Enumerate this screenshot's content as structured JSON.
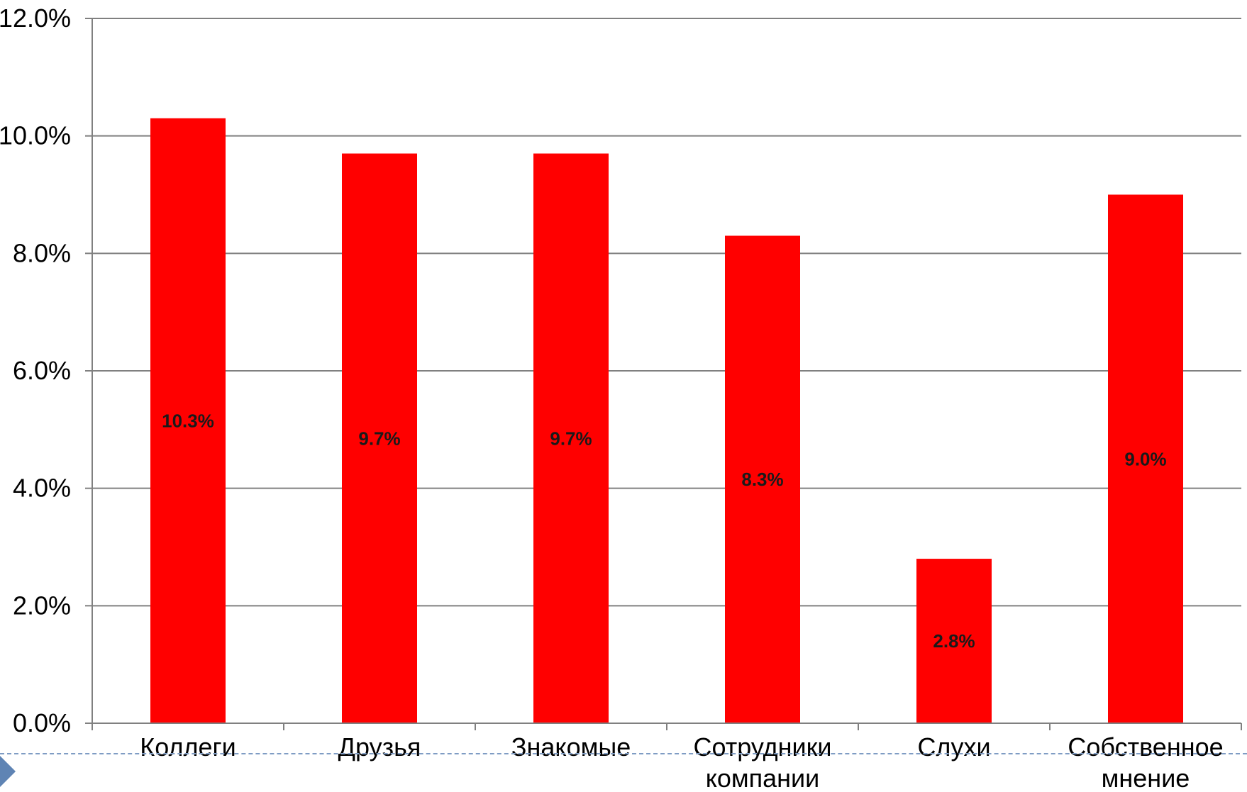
{
  "chart_data": {
    "type": "bar",
    "categories": [
      [
        "Коллеги"
      ],
      [
        "Друзья"
      ],
      [
        "Знакомые"
      ],
      [
        "Сотрудники",
        "компании"
      ],
      [
        "Слухи"
      ],
      [
        "Собственное",
        "мнение"
      ]
    ],
    "values": [
      10.3,
      9.7,
      9.7,
      8.3,
      2.8,
      9.0
    ],
    "data_labels": [
      "10.3%",
      "9.7%",
      "9.7%",
      "8.3%",
      "2.8%",
      "9.0%"
    ],
    "yticks": [
      0,
      2,
      4,
      6,
      8,
      10,
      12
    ],
    "ytick_labels": [
      "0.0%",
      "2.0%",
      "4.0%",
      "6.0%",
      "8.0%",
      "10.0%",
      "12.0%"
    ],
    "ylim": [
      0,
      12
    ],
    "grid": true,
    "bar_color": "#ff0000",
    "title": "",
    "xlabel": "",
    "ylabel": ""
  },
  "colors": {
    "grid": "#808080",
    "axis": "#808080",
    "nav_arrow": "#5f84b4"
  },
  "icons": {
    "nav": "triangle-right-icon"
  }
}
